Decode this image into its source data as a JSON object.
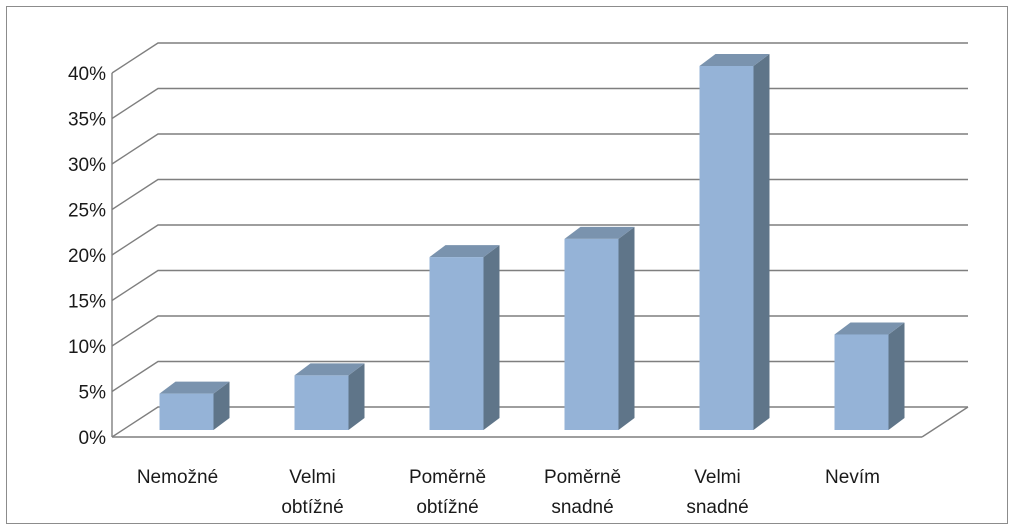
{
  "chart_data": {
    "type": "bar",
    "title": "",
    "xlabel": "",
    "ylabel": "",
    "categories": [
      [
        "Nemožné"
      ],
      [
        "Velmi",
        "obtížné"
      ],
      [
        "Poměrně",
        "obtížné"
      ],
      [
        "Poměrně",
        "snadné"
      ],
      [
        "Velmi",
        "snadné"
      ],
      [
        "Nevím"
      ]
    ],
    "values": [
      4,
      6,
      19,
      21,
      40,
      10.5
    ],
    "ylim": [
      0,
      40
    ],
    "ytick_step": 5,
    "ytick_suffix": "%",
    "grid": true,
    "three_d": true,
    "legend": "none",
    "colors": {
      "bar_front": "#95b3d7",
      "bar_side": "#5f7589",
      "bar_top": "#7a93ae",
      "gridline": "#7f7f7f"
    }
  }
}
